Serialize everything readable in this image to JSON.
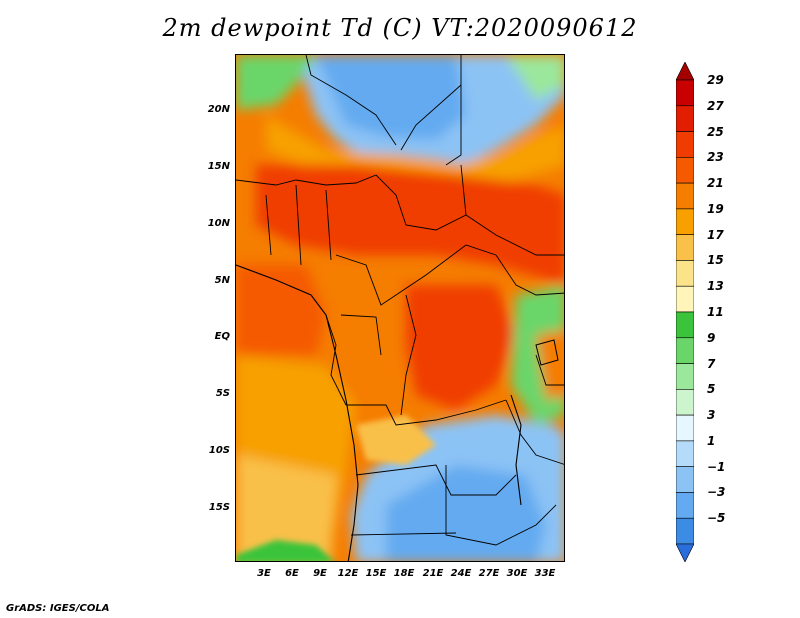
{
  "title": "2m dewpoint Td (C) VT:2020090612",
  "footer": "GrADS: IGES/COLA",
  "lat_labels": [
    "20N",
    "15N",
    "10N",
    "5N",
    "EQ",
    "5S",
    "10S",
    "15S"
  ],
  "lon_labels": [
    "3E",
    "6E",
    "9E",
    "12E",
    "15E",
    "18E",
    "21E",
    "24E",
    "27E",
    "30E",
    "33E"
  ],
  "colorbar": {
    "labels": [
      "29",
      "27",
      "25",
      "23",
      "21",
      "19",
      "17",
      "15",
      "13",
      "11",
      "9",
      "7",
      "5",
      "3",
      "1",
      "-1",
      "-3",
      "-5"
    ],
    "colors": [
      "#a50000",
      "#c80000",
      "#e11e00",
      "#f03c00",
      "#f55a00",
      "#f57d00",
      "#f7a000",
      "#f9c04a",
      "#fbe38a",
      "#fff5bb",
      "#3bc43b",
      "#6ad66a",
      "#9be79b",
      "#cdf5cd",
      "#e6f7ff",
      "#b4dcfa",
      "#8cc3f5",
      "#64aaf0",
      "#3c8ce6",
      "#2a6ddc"
    ]
  },
  "map": {
    "lon_range": [
      0,
      35
    ],
    "lat_range": [
      -19,
      24
    ],
    "projection": "lat-lon"
  }
}
